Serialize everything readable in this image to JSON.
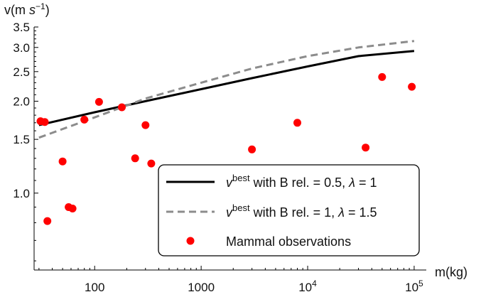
{
  "chart_data": {
    "type": "scatter",
    "title": "",
    "xlabel": "m(kg)",
    "ylabel_prefix": "v(m ",
    "ylabel_unit_s": "s",
    "ylabel_exp": "−1",
    "ylabel_suffix": ")",
    "x_scale": "log",
    "y_scale": "log",
    "xlim": [
      27,
      130000
    ],
    "ylim": [
      0.56,
      3.5
    ],
    "x_ticks": [
      {
        "value": 100,
        "label": "100"
      },
      {
        "value": 1000,
        "label": "1000"
      },
      {
        "value": 10000,
        "base": "10",
        "exp": "4"
      },
      {
        "value": 100000,
        "base": "10",
        "exp": "5"
      }
    ],
    "y_ticks": [
      {
        "value": 1.0,
        "label": "1.0"
      },
      {
        "value": 1.5,
        "label": "1.5"
      },
      {
        "value": 2.0,
        "label": "2.0"
      },
      {
        "value": 2.5,
        "label": "2.5"
      },
      {
        "value": 3.0,
        "label": "3.0"
      },
      {
        "value": 3.5,
        "label": "3.5"
      }
    ],
    "grid": false,
    "legend_position": "bottom-right",
    "series": [
      {
        "kind": "line",
        "color": "#000000",
        "dash": "solid",
        "legend_v": "v",
        "legend_sup": "best",
        "legend_rest": " with B rel. = 0.5, ",
        "legend_lambda": "λ",
        "legend_end": " = 1",
        "x": [
          30,
          100,
          300,
          1000,
          3000,
          10000,
          30000,
          100000
        ],
        "y": [
          1.67,
          1.84,
          2.0,
          2.19,
          2.38,
          2.6,
          2.81,
          2.92
        ]
      },
      {
        "kind": "line",
        "color": "#8c8c8c",
        "dash": "dashed",
        "legend_v": "v",
        "legend_sup": "best",
        "legend_rest": " with B rel. = 1, ",
        "legend_lambda": "λ",
        "legend_end": " = 1.5",
        "x": [
          30,
          100,
          300,
          1000,
          3000,
          10000,
          30000,
          100000
        ],
        "y": [
          1.52,
          1.77,
          2.04,
          2.3,
          2.56,
          2.81,
          3.0,
          3.15
        ]
      },
      {
        "kind": "scatter",
        "color": "#ff0000",
        "name": "Mammal observations",
        "x": [
          31,
          34,
          36,
          50,
          57,
          62,
          80,
          110,
          180,
          240,
          300,
          340,
          3000,
          8000,
          35000,
          50000,
          95000
        ],
        "y": [
          1.72,
          1.71,
          0.81,
          1.27,
          0.9,
          0.89,
          1.74,
          1.99,
          1.91,
          1.3,
          1.67,
          1.25,
          1.39,
          1.7,
          1.41,
          2.4,
          2.23
        ]
      }
    ]
  }
}
